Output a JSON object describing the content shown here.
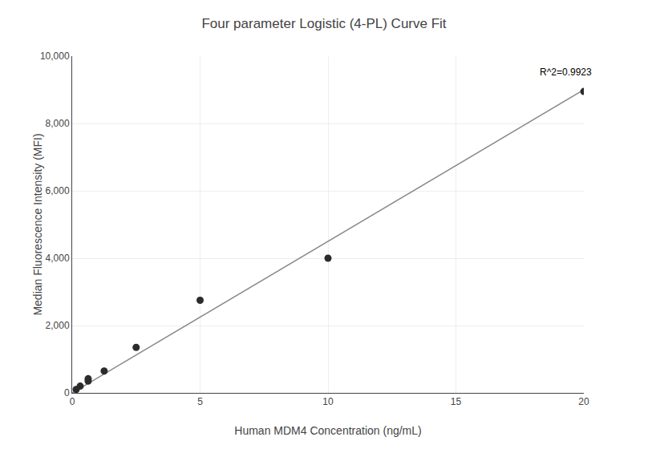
{
  "chart_data": {
    "type": "scatter",
    "title": "Four parameter Logistic (4-PL) Curve Fit",
    "xlabel": "Human MDM4 Concentration (ng/mL)",
    "ylabel": "Median Fluorescence Intensity (MFI)",
    "series": [
      {
        "type": "line",
        "color": "#888888",
        "line_style": "solid",
        "x": [
          0.0,
          20.0
        ],
        "values": [
          0.0,
          9000.0
        ]
      },
      {
        "type": "scatter",
        "color": "#2b2b2b",
        "marker": "circle",
        "x": [
          0.156,
          0.3125,
          0.625,
          0.625,
          1.25,
          2.5,
          5.0,
          10.0,
          20.0
        ],
        "values": [
          100,
          200,
          350,
          420,
          650,
          1350,
          2750,
          4000,
          8950
        ]
      }
    ],
    "annotations": [
      {
        "text": "R^2=0.9923",
        "x": 18.2,
        "y": 9300
      }
    ],
    "xlim": [
      0,
      20
    ],
    "ylim": [
      0,
      10000
    ],
    "xticks": [
      0,
      5,
      10,
      15,
      20
    ],
    "yticks": [
      0,
      {
        "value": 2000,
        "label": "2,000"
      },
      {
        "value": 4000,
        "label": "4,000"
      },
      {
        "value": 6000,
        "label": "6,000"
      },
      {
        "value": 8000,
        "label": "8,000"
      },
      {
        "value": 10000,
        "label": "10,000"
      }
    ],
    "grid": true
  }
}
